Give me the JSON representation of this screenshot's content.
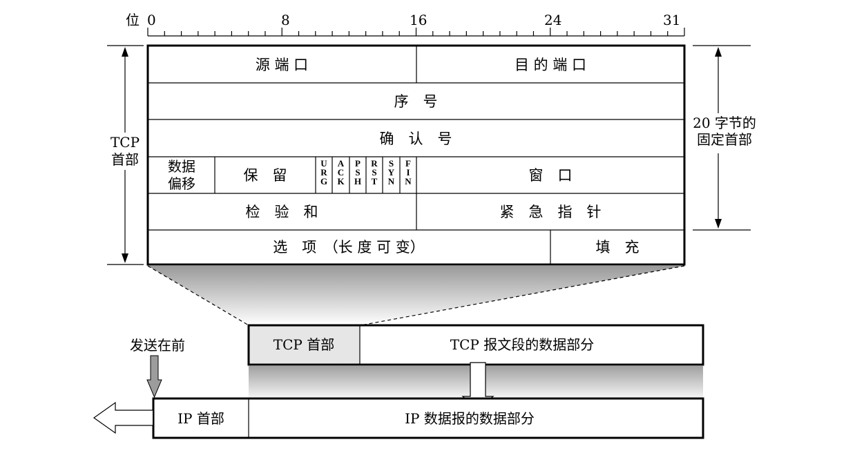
{
  "ruler": {
    "label": "位",
    "ticks": [
      "0",
      "8",
      "16",
      "24",
      "31"
    ]
  },
  "header_fields": {
    "src_port": "源 端 口",
    "dst_port": "目 的 端 口",
    "seq": "序　号",
    "ack_num": "确　认　号",
    "data_offset_line1": "数据",
    "data_offset_line2": "偏移",
    "reserved": "保　留",
    "flags": [
      [
        "U",
        "R",
        "G"
      ],
      [
        "A",
        "C",
        "K"
      ],
      [
        "P",
        "S",
        "H"
      ],
      [
        "R",
        "S",
        "T"
      ],
      [
        "S",
        "Y",
        "N"
      ],
      [
        "F",
        "I",
        "N"
      ]
    ],
    "window": "窗　口",
    "checksum": "检　验　和",
    "urgent_ptr": "紧　急　指　针",
    "options": "选　项　（长 度 可 变）",
    "padding": "填　充"
  },
  "left_brace": {
    "line1": "TCP",
    "line2": "首部"
  },
  "right_brace": {
    "line1": "20 字节的",
    "line2": "固定首部"
  },
  "segment": {
    "header_label": "TCP 首部",
    "data_label": "TCP 报文段的数据部分"
  },
  "ip_datagram": {
    "header_label": "IP 首部",
    "data_label": "IP 数据报的数据部分"
  },
  "send_first": "发送在前"
}
